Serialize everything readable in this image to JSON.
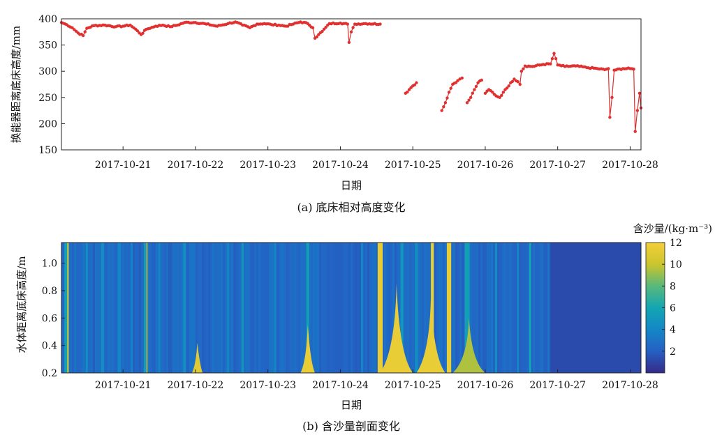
{
  "chart_data": [
    {
      "type": "line",
      "panel": "a",
      "caption": "(a) 底床相对高度变化",
      "xlabel": "日期",
      "ylabel": "换能器距离底床高度/mm",
      "x_ticks": [
        "2017-10-21",
        "2017-10-22",
        "2017-10-23",
        "2017-10-24",
        "2017-10-25",
        "2017-10-26",
        "2017-10-27",
        "2017-10-28"
      ],
      "y_ticks": [
        "150",
        "200",
        "250",
        "300",
        "350",
        "400"
      ],
      "xlim": [
        20.15,
        28.15
      ],
      "ylim": [
        150,
        400
      ],
      "marker_color": "#e03030",
      "series": [
        {
          "points": [
            [
              20.15,
              393
            ],
            [
              20.22,
              389
            ],
            [
              20.3,
              383
            ],
            [
              20.38,
              373
            ],
            [
              20.45,
              368
            ],
            [
              20.5,
              382
            ],
            [
              20.6,
              387
            ],
            [
              20.75,
              388
            ],
            [
              20.9,
              385
            ],
            [
              21.0,
              386
            ],
            [
              21.1,
              388
            ],
            [
              21.2,
              377
            ],
            [
              21.25,
              370
            ],
            [
              21.32,
              380
            ],
            [
              21.45,
              386
            ],
            [
              21.55,
              388
            ],
            [
              21.65,
              385
            ],
            [
              21.75,
              388
            ],
            [
              21.85,
              393
            ],
            [
              22.0,
              393
            ],
            [
              22.15,
              390
            ],
            [
              22.3,
              386
            ],
            [
              22.45,
              391
            ],
            [
              22.55,
              394
            ],
            [
              22.65,
              388
            ],
            [
              22.75,
              383
            ],
            [
              22.85,
              390
            ],
            [
              22.95,
              391
            ],
            [
              23.05,
              389
            ],
            [
              23.15,
              388
            ],
            [
              23.25,
              386
            ],
            [
              23.35,
              390
            ],
            [
              23.45,
              394
            ],
            [
              23.55,
              391
            ],
            [
              23.62,
              383
            ],
            [
              23.65,
              363
            ],
            [
              23.7,
              370
            ],
            [
              23.75,
              376
            ],
            [
              23.85,
              391
            ],
            [
              24.0,
              392
            ],
            [
              24.1,
              390
            ],
            [
              24.12,
              355
            ],
            [
              24.15,
              375
            ],
            [
              24.2,
              390
            ],
            [
              24.35,
              391
            ],
            [
              24.55,
              390
            ],
            null,
            [
              24.9,
              258
            ],
            [
              24.95,
              265
            ],
            [
              25.0,
              272
            ],
            [
              25.05,
              278
            ],
            null,
            [
              25.4,
              225
            ],
            [
              25.45,
              240
            ],
            [
              25.5,
              260
            ],
            [
              25.55,
              275
            ],
            [
              25.62,
              282
            ],
            [
              25.68,
              287
            ],
            null,
            [
              25.75,
              240
            ],
            [
              25.8,
              250
            ],
            [
              25.85,
              265
            ],
            [
              25.9,
              278
            ],
            [
              25.95,
              283
            ],
            null,
            [
              26.0,
              258
            ],
            [
              26.05,
              265
            ],
            [
              26.1,
              260
            ],
            [
              26.15,
              253
            ],
            [
              26.2,
              250
            ],
            [
              26.25,
              260
            ],
            [
              26.3,
              268
            ],
            [
              26.35,
              278
            ],
            [
              26.4,
              285
            ],
            [
              26.45,
              280
            ],
            [
              26.48,
              275
            ],
            [
              26.5,
              300
            ],
            [
              26.55,
              310
            ],
            [
              26.65,
              309
            ],
            [
              26.8,
              313
            ],
            [
              26.9,
              314
            ],
            [
              26.95,
              334
            ],
            [
              27.0,
              312
            ],
            [
              27.1,
              309
            ],
            [
              27.25,
              310
            ],
            [
              27.4,
              307
            ],
            [
              27.55,
              305
            ],
            [
              27.65,
              303
            ],
            [
              27.7,
              305
            ],
            [
              27.72,
              212
            ],
            [
              27.75,
              250
            ],
            [
              27.78,
              302
            ],
            [
              27.9,
              305
            ],
            [
              28.0,
              305
            ],
            [
              28.05,
              304
            ],
            [
              28.07,
              185
            ],
            [
              28.1,
              225
            ],
            [
              28.13,
              258
            ],
            [
              28.15,
              230
            ]
          ]
        }
      ]
    },
    {
      "type": "heatmap",
      "panel": "b",
      "caption": "(b) 含沙量剖面变化",
      "xlabel": "日期",
      "ylabel": "水体距离底床高度/m",
      "colorbar_label": "含沙量/(kg·m⁻³)",
      "x_ticks": [
        "2017-10-21",
        "2017-10-22",
        "2017-10-23",
        "2017-10-24",
        "2017-10-25",
        "2017-10-26",
        "2017-10-27",
        "2017-10-28"
      ],
      "y_ticks": [
        "0.2",
        "0.4",
        "0.6",
        "0.8",
        "1.0"
      ],
      "colorbar_ticks": [
        "2",
        "4",
        "6",
        "8",
        "10",
        "12"
      ],
      "xlim": [
        20.15,
        28.15
      ],
      "ylim": [
        0.2,
        1.15
      ],
      "clim": [
        0,
        12
      ],
      "background_value": 2.5,
      "columns": [
        {
          "x": 20.22,
          "w": 0.06,
          "v": 5.5
        },
        {
          "x": 20.24,
          "w": 0.02,
          "v": 10.5
        },
        {
          "x": 20.5,
          "w": 0.03,
          "v": 4.5
        },
        {
          "x": 20.72,
          "w": 0.04,
          "v": 4.5
        },
        {
          "x": 20.95,
          "w": 0.05,
          "v": 4.0
        },
        {
          "x": 21.12,
          "w": 0.03,
          "v": 4.0
        },
        {
          "x": 21.3,
          "w": 0.03,
          "v": 5.5
        },
        {
          "x": 21.33,
          "w": 0.015,
          "v": 10.5
        },
        {
          "x": 21.5,
          "w": 0.03,
          "v": 4.0
        },
        {
          "x": 21.85,
          "w": 0.04,
          "v": 4.5
        },
        {
          "x": 22.45,
          "w": 0.03,
          "v": 4.0
        },
        {
          "x": 22.65,
          "w": 0.03,
          "v": 5.0
        },
        {
          "x": 23.1,
          "w": 0.03,
          "v": 4.0
        },
        {
          "x": 23.55,
          "w": 0.04,
          "v": 5.5
        },
        {
          "x": 24.3,
          "w": 0.03,
          "v": 4.0
        },
        {
          "x": 24.55,
          "w": 0.07,
          "v": 11.5
        },
        {
          "x": 24.85,
          "w": 0.04,
          "v": 5.0
        },
        {
          "x": 25.05,
          "w": 0.04,
          "v": 4.5
        },
        {
          "x": 25.27,
          "w": 0.04,
          "v": 11.5
        },
        {
          "x": 25.5,
          "w": 0.06,
          "v": 11.5
        },
        {
          "x": 25.75,
          "w": 0.07,
          "v": 5.5
        },
        {
          "x": 26.15,
          "w": 0.03,
          "v": 4.5
        },
        {
          "x": 26.45,
          "w": 0.03,
          "v": 4.0
        },
        {
          "x": 26.62,
          "w": 0.025,
          "v": 6.0
        }
      ],
      "plumes": [
        {
          "x": [
            23.45,
            23.65
          ],
          "top": 0.55,
          "v": 11.5
        },
        {
          "x": [
            24.55,
            25.0
          ],
          "top": 0.85,
          "v": 11.5
        },
        {
          "x": [
            25.05,
            25.45
          ],
          "top": 0.75,
          "v": 11.5
        },
        {
          "x": [
            25.55,
            26.0
          ],
          "top": 0.6,
          "v": 9.5
        },
        {
          "x": [
            21.95,
            22.1
          ],
          "top": 0.42,
          "v": 11.0
        }
      ],
      "dark_region": {
        "x": [
          26.9,
          28.15
        ],
        "v": 1.2
      }
    }
  ]
}
